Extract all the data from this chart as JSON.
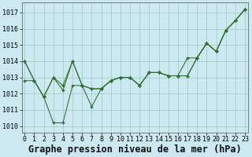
{
  "xlabel": "Graphe pression niveau de la mer (hPa)",
  "bg_color": "#cce8f0",
  "grid_color": "#99ccbb",
  "line_color": "#2d6e2d",
  "x_ticks": [
    0,
    1,
    2,
    3,
    4,
    5,
    6,
    7,
    8,
    9,
    10,
    11,
    12,
    13,
    14,
    15,
    16,
    17,
    18,
    19,
    20,
    21,
    22,
    23
  ],
  "y_ticks": [
    1010,
    1011,
    1012,
    1013,
    1014,
    1015,
    1016,
    1017
  ],
  "ylim": [
    1009.6,
    1017.6
  ],
  "xlim": [
    -0.3,
    23.3
  ],
  "line1": [
    1014.0,
    1012.8,
    1011.8,
    1010.2,
    1010.2,
    1012.5,
    1012.5,
    1012.3,
    1012.3,
    1012.8,
    1013.0,
    1013.0,
    1012.5,
    1013.3,
    1013.3,
    1013.1,
    1013.1,
    1013.1,
    1014.2,
    1015.1,
    1014.6,
    1015.9,
    1016.5,
    1017.2
  ],
  "line2": [
    1012.8,
    1012.8,
    1011.8,
    1013.0,
    1012.2,
    1014.0,
    1012.5,
    1012.3,
    1012.3,
    1012.8,
    1013.0,
    1013.0,
    1012.5,
    1013.3,
    1013.3,
    1013.1,
    1013.1,
    1014.2,
    1014.2,
    1015.1,
    1014.6,
    1015.9,
    1016.5,
    1017.2
  ],
  "line3": [
    1014.0,
    1012.8,
    1011.8,
    1013.0,
    1012.5,
    1014.0,
    1012.5,
    1011.2,
    1012.3,
    1012.8,
    1013.0,
    1013.0,
    1012.5,
    1013.3,
    1013.3,
    1013.1,
    1013.1,
    1013.1,
    1014.2,
    1015.1,
    1014.6,
    1015.9,
    1016.5,
    1017.2
  ],
  "xlabel_fontsize": 8.5,
  "tick_fontsize": 6.0
}
